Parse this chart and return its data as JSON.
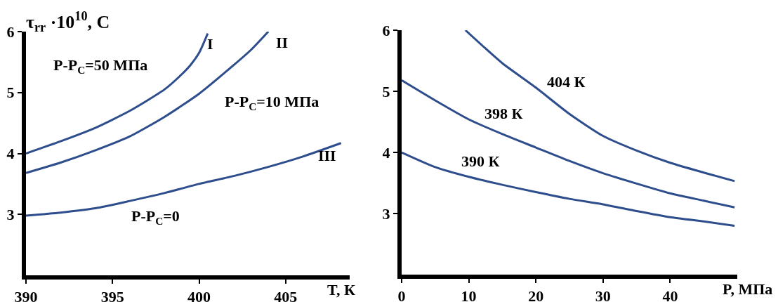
{
  "chart_data": [
    {
      "type": "line",
      "ylabel": "τ$_{rr}$ ·10$^{10}$, С",
      "xlabel": "T, К",
      "xlim": [
        390,
        408.7
      ],
      "ylim": [
        2,
        6
      ],
      "xticks": [
        390,
        395,
        400,
        405
      ],
      "yticks": [
        3,
        4,
        5,
        6
      ],
      "series": [
        {
          "name": "I",
          "color": "#2e4d8c",
          "x": [
            390,
            392,
            394,
            396,
            398,
            399,
            399.5,
            400,
            400.5
          ],
          "values": [
            4.0,
            4.2,
            4.42,
            4.7,
            5.05,
            5.3,
            5.45,
            5.65,
            5.97
          ]
        },
        {
          "name": "II",
          "color": "#2e4d8c",
          "x": [
            390,
            392,
            394,
            396,
            398,
            400,
            402,
            403,
            404
          ],
          "values": [
            3.68,
            3.85,
            4.05,
            4.28,
            4.6,
            4.98,
            5.45,
            5.7,
            6.0
          ]
        },
        {
          "name": "III",
          "color": "#2e4d8c",
          "x": [
            390,
            392,
            394,
            396,
            398,
            400,
            402,
            404,
            406,
            408.2
          ],
          "values": [
            2.98,
            3.03,
            3.1,
            3.22,
            3.35,
            3.5,
            3.63,
            3.78,
            3.95,
            4.17
          ]
        }
      ],
      "annotations": [
        "P-P$_{C}$=50 МПа",
        "P-P$_{C}$=10 МПа",
        "P-P$_{C}$=0"
      ]
    },
    {
      "type": "line",
      "xlabel": "P, МПа",
      "xlim": [
        0,
        50
      ],
      "ylim": [
        2,
        6
      ],
      "xticks": [
        0,
        10,
        20,
        30,
        40
      ],
      "yticks": [
        3,
        4,
        5,
        6
      ],
      "series": [
        {
          "name": "404 К",
          "color": "#2e4d8c",
          "x": [
            9.5,
            12,
            15,
            20,
            25,
            30,
            35,
            40,
            45,
            49.6
          ],
          "values": [
            6.0,
            5.75,
            5.46,
            5.06,
            4.63,
            4.27,
            4.03,
            3.83,
            3.67,
            3.53
          ]
        },
        {
          "name": "398 К",
          "color": "#2e4d8c",
          "x": [
            0,
            5,
            10,
            15,
            20,
            25,
            30,
            35,
            40,
            45,
            49.6
          ],
          "values": [
            5.18,
            4.85,
            4.54,
            4.3,
            4.08,
            3.86,
            3.66,
            3.49,
            3.33,
            3.21,
            3.1
          ]
        },
        {
          "name": "390 К",
          "color": "#2e4d8c",
          "x": [
            0,
            5,
            10,
            15,
            20,
            25,
            30,
            35,
            40,
            45,
            49.6
          ],
          "values": [
            4.0,
            3.76,
            3.6,
            3.47,
            3.35,
            3.24,
            3.15,
            3.04,
            2.94,
            2.87,
            2.8
          ]
        }
      ]
    }
  ]
}
